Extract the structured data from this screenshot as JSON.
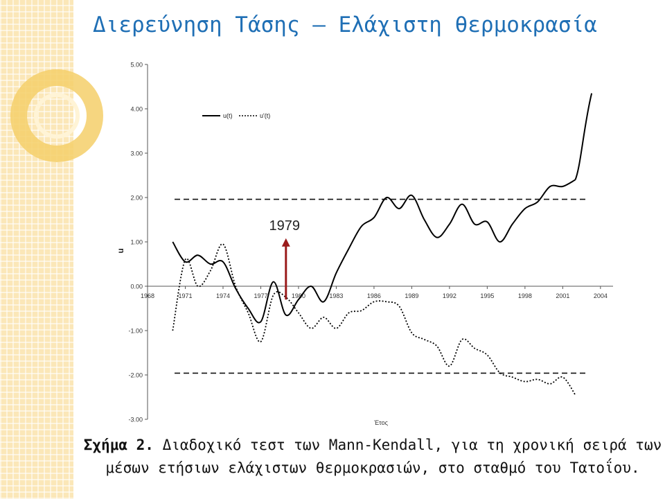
{
  "slide": {
    "title": "Διερεύνηση Τάσης – Ελάχιστη θερμοκρασία",
    "caption_lead": "Σχήμα 2.",
    "caption_text": "Διαδοχικό τεστ των Mann-Kendall, για τη χρονική σειρά των μέσων ετήσιων ελάχιστων θερμοκρασιών, στο σταθμό του Τατοΐου."
  },
  "colors": {
    "title": "#1f6fb5",
    "series": "#000000",
    "arrow": "#9b1c1c",
    "strip": "#fbe7b8"
  },
  "chart_data": {
    "type": "line",
    "ylabel": "u",
    "xlabel": "Έτος",
    "ylim": [
      -3.0,
      5.0
    ],
    "xlim": [
      1968,
      2005
    ],
    "y_ticks": [
      "5.00",
      "4.00",
      "3.00",
      "2.00",
      "1.00",
      "0.00",
      "-1.00",
      "-2.00",
      "-3.00"
    ],
    "y_tick_values": [
      5,
      4,
      3,
      2,
      1,
      0,
      -1,
      -2,
      -3
    ],
    "x_ticks": [
      "1968",
      "1971",
      "1974",
      "1977",
      "1980",
      "1983",
      "1986",
      "1989",
      "1992",
      "1995",
      "1998",
      "2001",
      "2004"
    ],
    "x_tick_values": [
      1968,
      1971,
      1974,
      1977,
      1980,
      1983,
      1986,
      1989,
      1992,
      1995,
      1998,
      2001,
      2004
    ],
    "thresholds": [
      1.96,
      -1.96
    ],
    "legend": {
      "placement": "top-left",
      "entries": [
        "u(t)",
        "u'(t)"
      ]
    },
    "annotation": {
      "label": "1979",
      "x": 1979,
      "y_from": -0.3,
      "y_to": 1.05
    },
    "series": [
      {
        "name": "u(t)",
        "style": "solid",
        "x": [
          1970,
          1971,
          1972,
          1973,
          1974,
          1975,
          1976,
          1977,
          1978,
          1979,
          1980,
          1981,
          1982,
          1983,
          1984,
          1985,
          1986,
          1987,
          1988,
          1989,
          1990,
          1991,
          1992,
          1993,
          1994,
          1995,
          1996,
          1997,
          1998,
          1999,
          2000,
          2001,
          2002
        ],
        "values": [
          1.0,
          0.55,
          0.7,
          0.5,
          0.55,
          -0.05,
          -0.5,
          -0.8,
          0.1,
          -0.65,
          -0.3,
          0.0,
          -0.35,
          0.3,
          0.85,
          1.35,
          1.55,
          2.0,
          1.75,
          2.05,
          1.5,
          1.1,
          1.4,
          1.85,
          1.4,
          1.45,
          1.0,
          1.4,
          1.75,
          1.9,
          2.25,
          2.25,
          2.4
        ]
      },
      {
        "name": "u'(t)",
        "style": "dotted",
        "x": [
          1970,
          1971,
          1972,
          1973,
          1974,
          1975,
          1976,
          1977,
          1978,
          1979,
          1980,
          1981,
          1982,
          1983,
          1984,
          1985,
          1986,
          1987,
          1988,
          1989,
          1990,
          1991,
          1992,
          1993,
          1994,
          1995,
          1996,
          1997,
          1998,
          1999,
          2000,
          2001,
          2002
        ],
        "values": [
          -1.0,
          0.6,
          0.0,
          0.35,
          0.95,
          0.0,
          -0.6,
          -1.25,
          -0.2,
          -0.25,
          -0.6,
          -0.95,
          -0.7,
          -0.95,
          -0.6,
          -0.55,
          -0.35,
          -0.35,
          -0.45,
          -1.05,
          -1.2,
          -1.35,
          -1.8,
          -1.2,
          -1.4,
          -1.55,
          -1.95,
          -2.05,
          -2.15,
          -2.1,
          -2.2,
          -2.05,
          -2.45
        ]
      }
    ]
  }
}
